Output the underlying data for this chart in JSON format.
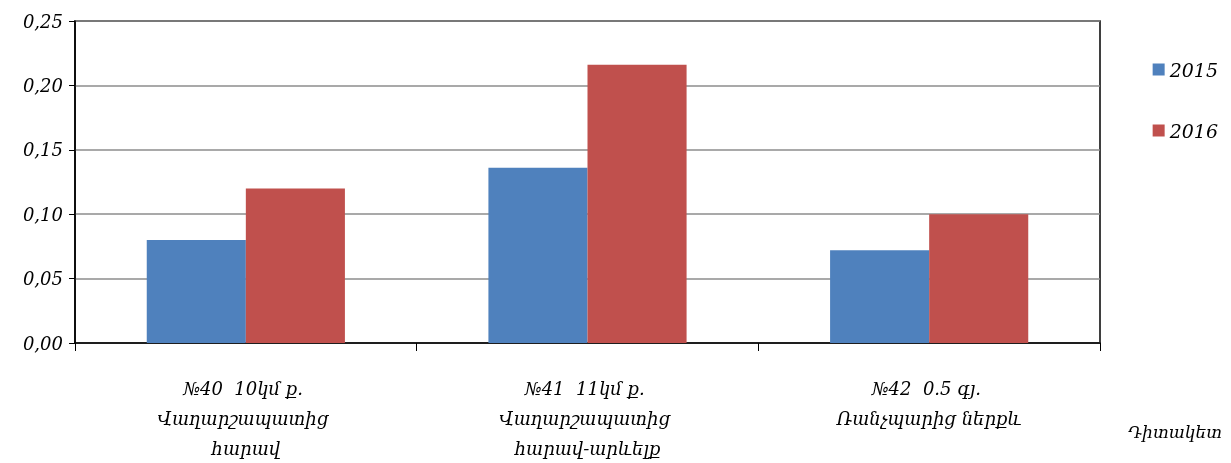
{
  "chart_data": {
    "type": "bar",
    "xlabel": "Դիտակետ",
    "categories": [
      "№40  10կմ ք. Վաղարշապատից հարավ",
      "№41  11կմ ք. Վաղարշապատից հարավ-արևելք",
      "№42  0.5 գյ. Ռանչպարից ներքև"
    ],
    "series": [
      {
        "name": "2015",
        "color": "#4f81bd",
        "values": [
          0.08,
          0.136,
          0.072
        ]
      },
      {
        "name": "2016",
        "color": "#c0504d",
        "values": [
          0.12,
          0.216,
          0.1
        ]
      }
    ],
    "ylim": [
      0,
      0.25
    ],
    "yticks": [
      {
        "value": 0,
        "label": "0,00"
      },
      {
        "value": 0.05,
        "label": "0,05"
      },
      {
        "value": 0.1,
        "label": "0,10"
      },
      {
        "value": 0.15,
        "label": "0,15"
      },
      {
        "value": 0.2,
        "label": "0,20"
      },
      {
        "value": 0.25,
        "label": "0,25"
      }
    ],
    "grid": "y",
    "legend": "right"
  }
}
